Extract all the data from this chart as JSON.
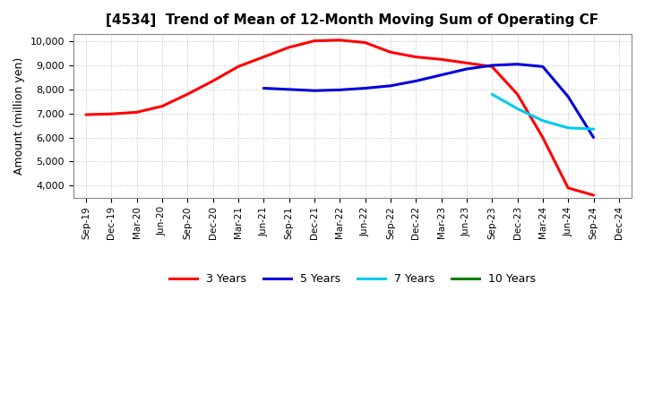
{
  "title": "[4534]  Trend of Mean of 12-Month Moving Sum of Operating CF",
  "ylabel": "Amount (million yen)",
  "ylim": [
    3500,
    10300
  ],
  "yticks": [
    4000,
    5000,
    6000,
    7000,
    8000,
    9000,
    10000
  ],
  "background_color": "#ffffff",
  "plot_bg_color": "#ffffff",
  "grid_color": "#b0b0b0",
  "x_labels": [
    "Sep-19",
    "Dec-19",
    "Mar-20",
    "Jun-20",
    "Sep-20",
    "Dec-20",
    "Mar-21",
    "Jun-21",
    "Sep-21",
    "Dec-21",
    "Mar-22",
    "Jun-22",
    "Sep-22",
    "Dec-22",
    "Mar-23",
    "Jun-23",
    "Sep-23",
    "Dec-23",
    "Mar-24",
    "Jun-24",
    "Sep-24",
    "Dec-24"
  ],
  "series": {
    "3 Years": {
      "color": "#ff0000",
      "indices": [
        0,
        1,
        2,
        3,
        4,
        5,
        6,
        7,
        8,
        9,
        10,
        11,
        12,
        13,
        14,
        15,
        16,
        17,
        18,
        19,
        20
      ],
      "values": [
        6950,
        6980,
        7050,
        7300,
        7800,
        8350,
        8950,
        9350,
        9750,
        10020,
        10050,
        9950,
        9550,
        9350,
        9250,
        9100,
        8950,
        7800,
        6000,
        3900,
        3600
      ]
    },
    "5 Years": {
      "color": "#0000dd",
      "indices": [
        7,
        8,
        9,
        10,
        11,
        12,
        13,
        14,
        15,
        16,
        17,
        18,
        19,
        20
      ],
      "values": [
        8050,
        8000,
        7950,
        7980,
        8050,
        8150,
        8350,
        8600,
        8850,
        9000,
        9050,
        8950,
        7700,
        6000
      ]
    },
    "7 Years": {
      "color": "#00ccee",
      "indices": [
        16,
        17,
        18,
        19,
        20
      ],
      "values": [
        7800,
        7200,
        6700,
        6400,
        6350
      ]
    },
    "10 Years": {
      "color": "#008000",
      "indices": [],
      "values": []
    }
  },
  "legend": {
    "labels": [
      "3 Years",
      "5 Years",
      "7 Years",
      "10 Years"
    ],
    "colors": [
      "#ff0000",
      "#0000dd",
      "#00ccee",
      "#008000"
    ]
  }
}
